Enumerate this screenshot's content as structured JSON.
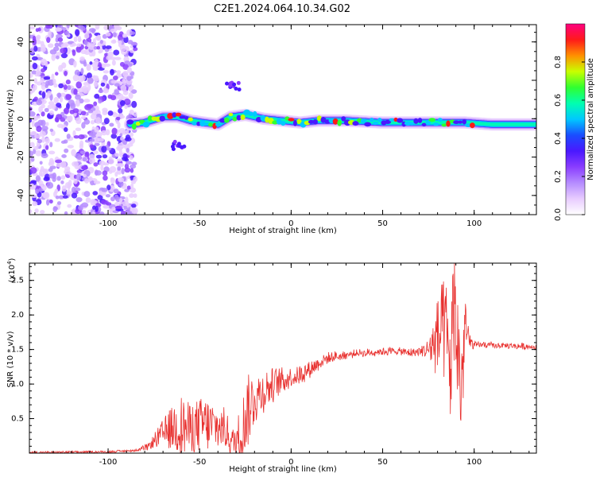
{
  "title": "C2E1.2024.064.10.34.G02",
  "colors": {
    "snr_line": "#e8312f",
    "scatter": "#7a1ff2",
    "axes": "#000000",
    "colormap": [
      "#ffffff",
      "#e8ccff",
      "#b58cff",
      "#8a3dff",
      "#4a18ff",
      "#1a4dff",
      "#00c8ff",
      "#00ffb0",
      "#30ff30",
      "#c8ff00",
      "#ff9000",
      "#ff1a1a",
      "#ff0080"
    ]
  },
  "chart_data": [
    {
      "type": "heatmap",
      "title": "",
      "xlabel": "Height of straight line (km)",
      "ylabel": "Frequency (Hz)",
      "xlim": [
        -143,
        134
      ],
      "ylim": [
        -50,
        49
      ],
      "x_ticks": [
        -100,
        -50,
        0,
        50,
        100
      ],
      "y_ticks": [
        -40,
        -20,
        0,
        20,
        40
      ],
      "colorbar": {
        "label": "Normalized spectral amplitude",
        "range": [
          0.0,
          1.0
        ],
        "ticks": [
          "0.0",
          "0.2",
          "0.4",
          "0.6",
          "0.8"
        ]
      },
      "noise_region": {
        "x_range": [
          -143,
          -85
        ],
        "y_range": [
          -50,
          49
        ]
      },
      "ridge": [
        {
          "x": -88,
          "y": -3
        },
        {
          "x": -80,
          "y": -2
        },
        {
          "x": -70,
          "y": 1
        },
        {
          "x": -62,
          "y": 1
        },
        {
          "x": -55,
          "y": -1
        },
        {
          "x": -48,
          "y": -2
        },
        {
          "x": -40,
          "y": -3
        },
        {
          "x": -33,
          "y": 1
        },
        {
          "x": -25,
          "y": 2
        },
        {
          "x": -15,
          "y": 0
        },
        {
          "x": -5,
          "y": -1
        },
        {
          "x": 5,
          "y": -2
        },
        {
          "x": 15,
          "y": -1
        },
        {
          "x": 30,
          "y": -1
        },
        {
          "x": 50,
          "y": -2
        },
        {
          "x": 70,
          "y": -2
        },
        {
          "x": 85,
          "y": -2
        },
        {
          "x": 95,
          "y": -2
        },
        {
          "x": 110,
          "y": -3
        },
        {
          "x": 134,
          "y": -3
        }
      ],
      "side_features": [
        {
          "x": -32,
          "y": 17,
          "note": ""
        },
        {
          "x": -62,
          "y": -14,
          "note": ""
        }
      ]
    },
    {
      "type": "line",
      "title": "",
      "xlabel": "Height of straight line (km)",
      "ylabel": "SNR (10 * v/v)",
      "y_scale_label": "(x10",
      "y_scale_exp": "4",
      "y_scale_close": ")",
      "xlim": [
        -143,
        134
      ],
      "ylim": [
        0,
        27500
      ],
      "x_ticks": [
        -100,
        -50,
        0,
        50,
        100
      ],
      "y_ticks": [
        5000,
        10000,
        15000,
        20000,
        25000
      ],
      "y_tick_labels": [
        "0.5",
        "1.0",
        "1.5",
        "2.0",
        "2.5"
      ],
      "series": [
        {
          "x": [
            -143,
            -120,
            -100,
            -85,
            -78,
            -72,
            -68,
            -64,
            -60,
            -56,
            -52,
            -48,
            -44,
            -40,
            -36,
            -32,
            -28,
            -24,
            -20,
            -16,
            -12,
            -8,
            -4,
            0,
            4,
            8,
            12,
            16,
            20,
            25,
            30,
            35,
            40,
            45,
            50,
            55,
            60,
            65,
            70,
            75,
            80,
            84,
            87,
            89,
            91,
            93,
            95,
            97,
            100,
            105,
            110,
            120,
            134
          ],
          "y": [
            100,
            150,
            200,
            400,
            900,
            2500,
            3200,
            3800,
            4000,
            3500,
            3800,
            4300,
            3900,
            3700,
            3500,
            1500,
            2500,
            6000,
            8000,
            8800,
            9500,
            10200,
            10600,
            11000,
            11300,
            11800,
            12500,
            13200,
            13700,
            14000,
            14200,
            14400,
            14500,
            14600,
            14700,
            14800,
            14700,
            14500,
            14700,
            15000,
            16500,
            18000,
            12000,
            22000,
            15000,
            9000,
            19000,
            16200,
            15600,
            15700,
            15600,
            15500,
            15400
          ],
          "envelope": [
            0,
            0,
            0,
            100,
            500,
            1500,
            2500,
            3500,
            4500,
            3800,
            3800,
            4000,
            4000,
            3200,
            3000,
            2000,
            4000,
            5500,
            4000,
            3200,
            2800,
            2200,
            1800,
            1500,
            1400,
            1300,
            1100,
            900,
            800,
            700,
            600,
            500,
            500,
            500,
            500,
            500,
            500,
            600,
            700,
            1500,
            6000,
            8000,
            9000,
            9000,
            9500,
            9000,
            6000,
            1500,
            500,
            400,
            400,
            400,
            400
          ]
        }
      ]
    }
  ]
}
